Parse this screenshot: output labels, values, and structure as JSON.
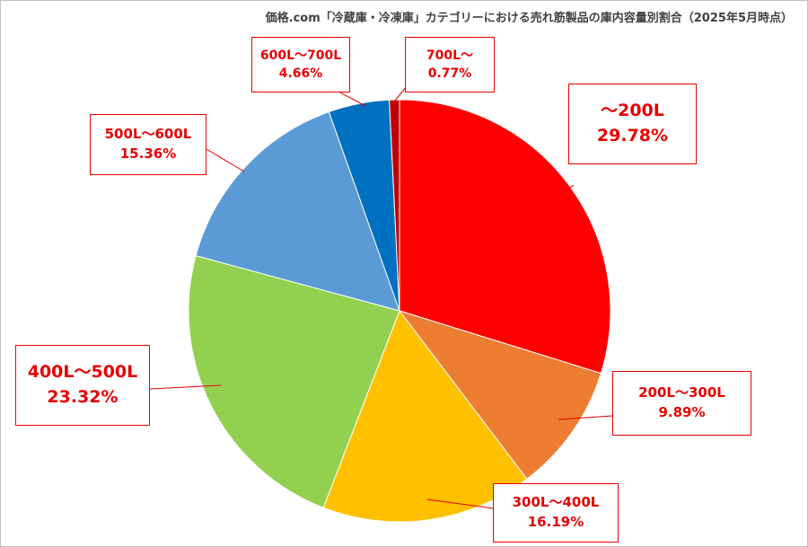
{
  "title": "価格.com「冷蔵庫・冷凍庫」カテゴリーにおける売れ筋製品の庫内容量別割合（2025年5月時点）",
  "chart_data": {
    "type": "pie",
    "title": "価格.com「冷蔵庫・冷凍庫」カテゴリーにおける売れ筋製品の庫内容量別割合（2025年5月時点）",
    "start_angle": "12 o'clock",
    "direction": "clockwise",
    "slices": [
      {
        "label": "～200L",
        "value": 29.78,
        "value_label": "29.78%",
        "color": "#ff0000"
      },
      {
        "label": "200L～300L",
        "value": 9.89,
        "value_label": "9.89%",
        "color": "#ed7d31"
      },
      {
        "label": "300L～400L",
        "value": 16.19,
        "value_label": "16.19%",
        "color": "#ffc000"
      },
      {
        "label": "400L～500L",
        "value": 23.32,
        "value_label": "23.32%",
        "color": "#92d050"
      },
      {
        "label": "500L～600L",
        "value": 15.36,
        "value_label": "15.36%",
        "color": "#5b9bd5"
      },
      {
        "label": "600L～700L",
        "value": 4.66,
        "value_label": "4.66%",
        "color": "#0070c0"
      },
      {
        "label": "700L～",
        "value": 0.77,
        "value_label": "0.77%",
        "color": "#c00000"
      }
    ],
    "label_color": "#e60000"
  }
}
